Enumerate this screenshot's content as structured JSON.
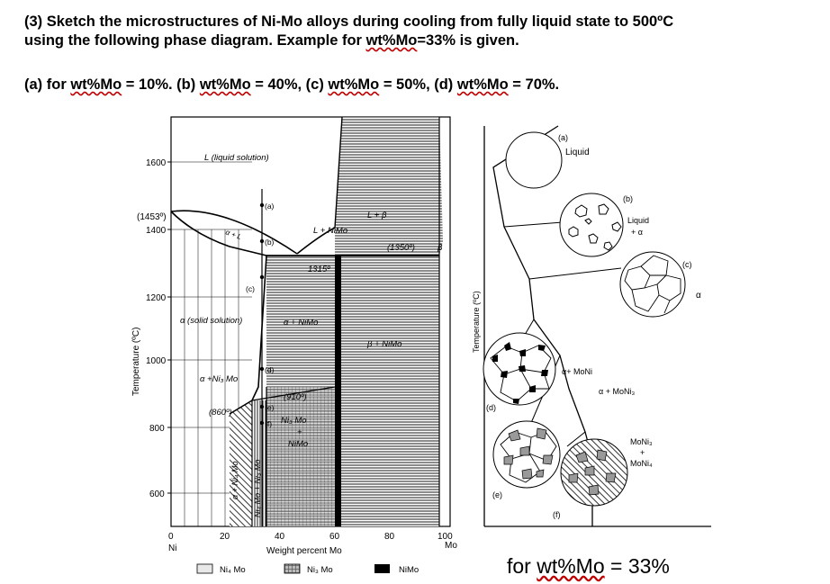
{
  "question": {
    "line1": "(3) Sketch the microstructures of Ni-Mo alloys during cooling from fully liquid state to 500ºC",
    "line2_pre": "using the following phase diagram. Example for ",
    "line2_wavy": "wt%Mo",
    "line2_post": "=33% is given.",
    "parts": [
      {
        "pre": "(a) for ",
        "wavy": "wt%Mo",
        "post": " = 10%. "
      },
      {
        "pre": "(b) ",
        "wavy": "wt%Mo",
        "post": " = 40%, "
      },
      {
        "pre": "(c) ",
        "wavy": "wt%Mo",
        "post": " = 50%, "
      },
      {
        "pre": "(d) ",
        "wavy": "wt%Mo",
        "post": " = 70%."
      }
    ]
  },
  "phase_diagram": {
    "ylabel": "Temperature (ºC)",
    "xlabel": "Weight percent Mo",
    "ni_label": "Ni",
    "mo_label": "Mo",
    "y_ticks": [
      "1600",
      "1400",
      "1200",
      "1000",
      "800",
      "600"
    ],
    "y_melt": "(1453º)",
    "x_ticks": [
      "0",
      "20",
      "40",
      "60",
      "80",
      "100"
    ],
    "region_labels": {
      "liquid": "L (liquid solution)",
      "alpha_l": "α + L",
      "l_nimo": "L + NiMo",
      "l_beta": "L + β",
      "t1350": "(1350º)",
      "beta": "β",
      "t1315": "1315º",
      "alpha_solid": "α (solid solution)",
      "alpha_nimo": "α + NiMo",
      "beta_nimo": "β + NiMo",
      "alpha_ni3mo": "α +Ni₃ Mo",
      "t910": "(910º)",
      "t860": "(860º)",
      "ni3mo_nimo_1": "Ni₃ Mo",
      "ni3mo_nimo_2": "+",
      "ni3mo_nimo_3": "NiMo",
      "vert1": "α + Ni₄ Mo",
      "vert2": "Ni₄ Mo + Ni₃ Mo"
    },
    "point_labels": [
      "(a)",
      "(b)",
      "(c)",
      "(d)",
      "(e)",
      "(f)"
    ],
    "legend": [
      "Ni₄ Mo",
      "Ni₃ Mo",
      "NiMo"
    ]
  },
  "micro_sketch": {
    "ylabel": "Temperature (ºC)",
    "labels": {
      "a": "(a)",
      "liquid": "Liquid",
      "b": "(b)",
      "liquid_alpha_1": "Liquid",
      "liquid_alpha_2": "+ α",
      "c": "(c)",
      "alpha": "α",
      "alpha_monI": "α+ MoNi",
      "d": "(d)",
      "alpha_moni3": "α + MoNi₃",
      "e": "(e)",
      "f": "(f)",
      "moni3_1": "MoNi₃",
      "moni3_2": "+",
      "moni3_3": "MoNi₄"
    }
  },
  "caption": {
    "pre": "for ",
    "wavy": "wt%Mo",
    "post": " = 33%"
  }
}
